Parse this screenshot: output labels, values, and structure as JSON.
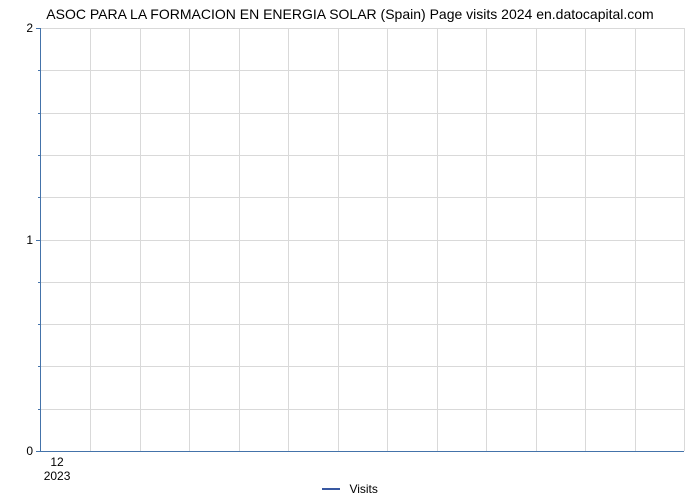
{
  "chart": {
    "type": "line",
    "title": "ASOC PARA LA FORMACION EN ENERGIA SOLAR (Spain) Page visits 2024 en.datocapital.com",
    "title_fontsize": 14,
    "title_color": "#000000",
    "background_color": "#ffffff",
    "plot_border_color": "#4473aa",
    "grid_color": "#d9d9d9",
    "y_axis": {
      "min": 0,
      "max": 2,
      "major_ticks": [
        0,
        1,
        2
      ],
      "minor_tick_count_between": 4,
      "label_fontsize": 12,
      "label_color": "#000000"
    },
    "x_axis": {
      "tick_label_top": "12",
      "tick_label_bottom": "2023",
      "tick_position_fraction": 0.025,
      "grid_line_count": 13,
      "label_fontsize": 12,
      "label_color": "#000000"
    },
    "series": [
      {
        "name": "Visits",
        "color": "#3858a1",
        "data": []
      }
    ],
    "legend": {
      "label": "Visits",
      "swatch_color": "#3858a1",
      "fontsize": 12
    }
  }
}
